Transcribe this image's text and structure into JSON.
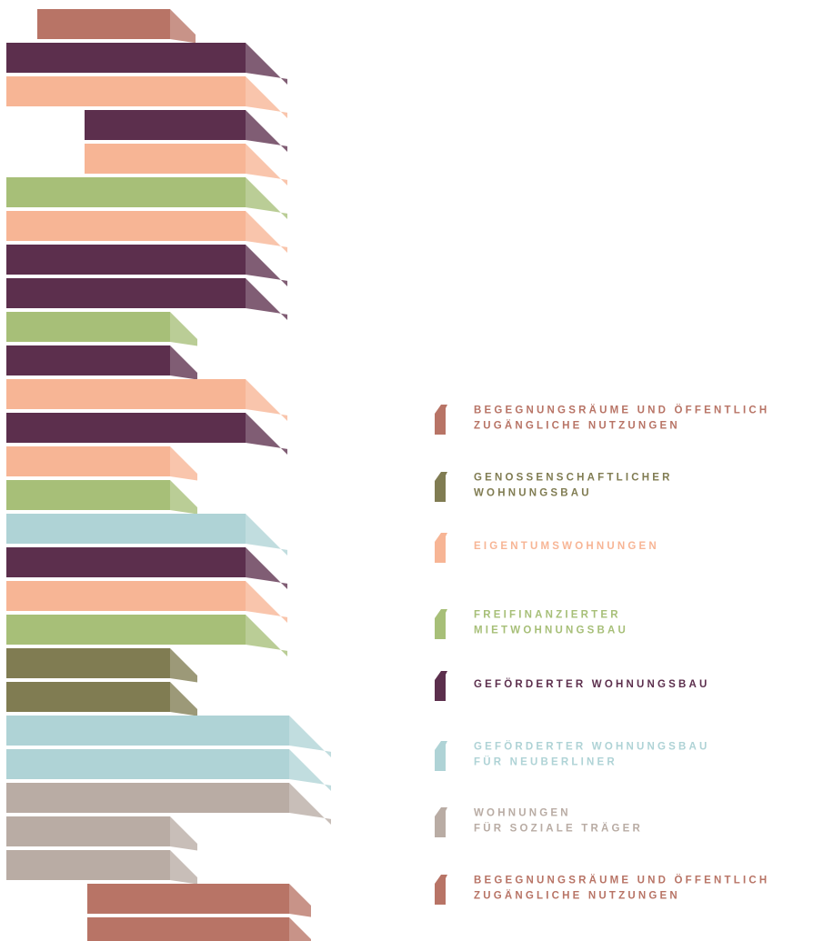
{
  "legend": {
    "items": [
      {
        "lines": [
          "BEGEGNUNGSRÄUME UND ÖFFENTLICH",
          "ZUGÄNGLICHE NUTZUNGEN"
        ],
        "color": "#b87466"
      },
      {
        "lines": [
          "GENOSSENSCHAFTLICHER",
          "WOHNUNGSBAU"
        ],
        "color": "#807c52"
      },
      {
        "lines": [
          "EIGENTUMSWOHNUNGEN"
        ],
        "color": "#f7b595"
      },
      {
        "lines": [
          "FREIFINANZIERTER",
          "MIETWOHNUNGSBAU"
        ],
        "color": "#a7bf78"
      },
      {
        "lines": [
          "GEFÖRDERTER WOHNUNGSBAU"
        ],
        "color": "#5c2f4d"
      },
      {
        "lines": [
          "GEFÖRDERTER WOHNUNGSBAU",
          "FÜR NEUBERLINER"
        ],
        "color": "#afd3d6"
      },
      {
        "lines": [
          "WOHNUNGEN",
          "FÜR SOZIALE TRÄGER"
        ],
        "color": "#b9aca4"
      },
      {
        "lines": [
          "BEGEGNUNGSRÄUME UND ÖFFENTLICH",
          "ZUGÄNGLICHE NUTZUNGEN"
        ],
        "color": "#b87466"
      }
    ]
  }
}
